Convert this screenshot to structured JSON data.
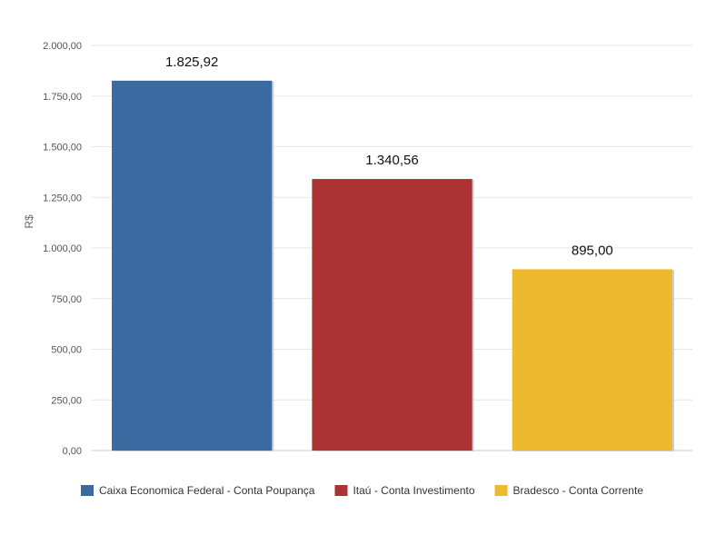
{
  "chart_data": {
    "type": "bar",
    "title": "",
    "xlabel": "",
    "ylabel": "R$",
    "ylim": [
      0,
      2000
    ],
    "y_ticks": [
      0,
      250,
      500,
      750,
      1000,
      1250,
      1500,
      1750,
      2000
    ],
    "y_tick_labels": [
      "0,00",
      "250,00",
      "500,00",
      "750,00",
      "1.000,00",
      "1.250,00",
      "1.500,00",
      "1.750,00",
      "2.000,00"
    ],
    "grid": true,
    "legend_position": "bottom-left",
    "categories": [
      "Caixa Economica Federal - Conta Poupança",
      "Itaú - Conta Investimento",
      "Bradesco - Conta Corrente"
    ],
    "values": [
      1825.92,
      1340.56,
      895.0
    ],
    "value_labels": [
      "1.825,92",
      "1.340,56",
      "895,00"
    ],
    "colors": [
      "#3b6aa0",
      "#ab3333",
      "#edb92f"
    ]
  }
}
